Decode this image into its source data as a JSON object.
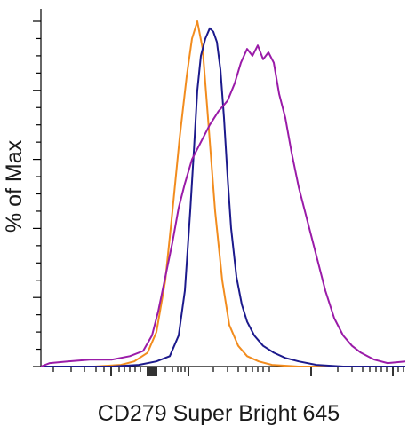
{
  "chart_data": {
    "type": "line",
    "xlabel": "CD279 Super Bright 645",
    "ylabel": "% of Max",
    "xscale": "log",
    "ylim": [
      0,
      100
    ],
    "grid": false,
    "legend": "none",
    "series": [
      {
        "color": "#f28c1e",
        "points": [
          [
            0,
            0
          ],
          [
            60,
            0
          ],
          [
            90,
            0.5
          ],
          [
            105,
            1.5
          ],
          [
            120,
            4
          ],
          [
            130,
            10
          ],
          [
            140,
            25
          ],
          [
            148,
            45
          ],
          [
            156,
            66
          ],
          [
            164,
            84
          ],
          [
            170,
            95
          ],
          [
            176,
            100
          ],
          [
            182,
            92
          ],
          [
            188,
            72
          ],
          [
            196,
            45
          ],
          [
            204,
            25
          ],
          [
            212,
            12
          ],
          [
            222,
            6
          ],
          [
            232,
            3
          ],
          [
            245,
            1.5
          ],
          [
            260,
            0.5
          ],
          [
            290,
            0
          ],
          [
            410,
            0
          ]
        ]
      },
      {
        "color": "#1c1a8c",
        "points": [
          [
            0,
            0
          ],
          [
            80,
            0
          ],
          [
            110,
            0.5
          ],
          [
            130,
            1.5
          ],
          [
            145,
            3
          ],
          [
            155,
            9
          ],
          [
            162,
            22
          ],
          [
            168,
            45
          ],
          [
            172,
            62
          ],
          [
            176,
            80
          ],
          [
            180,
            90
          ],
          [
            185,
            95
          ],
          [
            190,
            98
          ],
          [
            194,
            97
          ],
          [
            198,
            94
          ],
          [
            202,
            86
          ],
          [
            206,
            72
          ],
          [
            210,
            55
          ],
          [
            214,
            40
          ],
          [
            220,
            26
          ],
          [
            226,
            18
          ],
          [
            232,
            13
          ],
          [
            240,
            9
          ],
          [
            250,
            6
          ],
          [
            262,
            4
          ],
          [
            275,
            2.5
          ],
          [
            290,
            1.5
          ],
          [
            310,
            0.5
          ],
          [
            340,
            0
          ],
          [
            410,
            0
          ]
        ]
      },
      {
        "color": "#9a1ba8",
        "points": [
          [
            0,
            0
          ],
          [
            10,
            1
          ],
          [
            30,
            1.5
          ],
          [
            55,
            2
          ],
          [
            80,
            2
          ],
          [
            100,
            3
          ],
          [
            115,
            4.5
          ],
          [
            125,
            9
          ],
          [
            132,
            16
          ],
          [
            140,
            26
          ],
          [
            148,
            36
          ],
          [
            155,
            46
          ],
          [
            162,
            53
          ],
          [
            170,
            60
          ],
          [
            180,
            65
          ],
          [
            190,
            70
          ],
          [
            200,
            74
          ],
          [
            210,
            77
          ],
          [
            218,
            82
          ],
          [
            225,
            88
          ],
          [
            232,
            92
          ],
          [
            238,
            90
          ],
          [
            244,
            93
          ],
          [
            250,
            89
          ],
          [
            256,
            91
          ],
          [
            262,
            88
          ],
          [
            268,
            79
          ],
          [
            275,
            72
          ],
          [
            282,
            62
          ],
          [
            290,
            52
          ],
          [
            300,
            42
          ],
          [
            310,
            32
          ],
          [
            320,
            22
          ],
          [
            330,
            14
          ],
          [
            340,
            9
          ],
          [
            350,
            6
          ],
          [
            360,
            4
          ],
          [
            375,
            2
          ],
          [
            390,
            1
          ],
          [
            410,
            1.5
          ]
        ]
      }
    ]
  }
}
